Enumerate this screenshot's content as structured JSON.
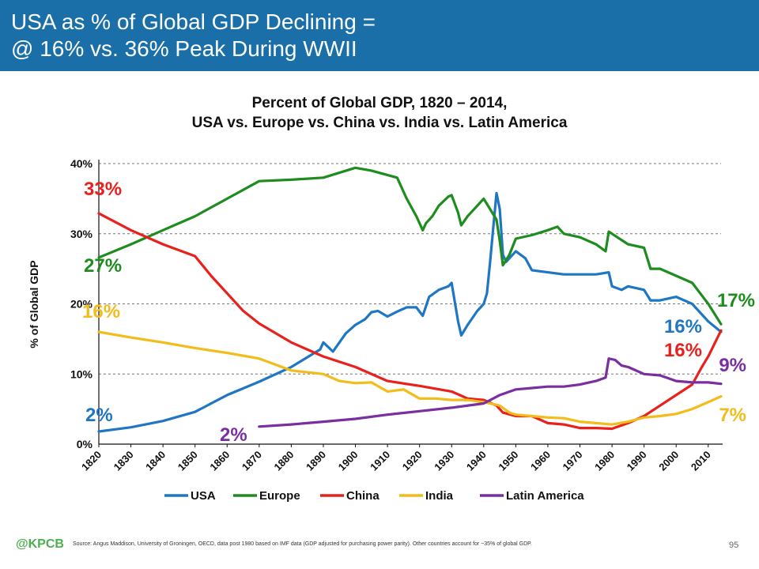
{
  "header": {
    "title_line1": "USA as % of Global GDP Declining =",
    "title_line2": "@ 16% vs. 36% Peak During WWII",
    "background_color": "#1a6fa8"
  },
  "chart_data": {
    "type": "line",
    "title_line1": "Percent of Global GDP, 1820 – 2014,",
    "title_line2": "USA vs. Europe vs. China vs. India vs. Latin America",
    "ylabel": "% of Global GDP",
    "xlabel": "",
    "xlim": [
      1820,
      2014
    ],
    "ylim": [
      0,
      40
    ],
    "y_ticks": [
      "0%",
      "10%",
      "20%",
      "30%",
      "40%"
    ],
    "x_ticks": [
      "1820",
      "1830",
      "1840",
      "1850",
      "1860",
      "1870",
      "1880",
      "1890",
      "1900",
      "1910",
      "1920",
      "1930",
      "1940",
      "1950",
      "1960",
      "1970",
      "1980",
      "1990",
      "2000",
      "2010"
    ],
    "grid": "horizontal dashed",
    "legend": "bottom",
    "series": [
      {
        "name": "USA",
        "color": "#1f77c4",
        "points": [
          [
            1820,
            1.8
          ],
          [
            1830,
            2.4
          ],
          [
            1840,
            3.3
          ],
          [
            1850,
            4.6
          ],
          [
            1860,
            7.0
          ],
          [
            1870,
            8.9
          ],
          [
            1880,
            11.0
          ],
          [
            1889,
            13.5
          ],
          [
            1890,
            14.5
          ],
          [
            1893,
            13.2
          ],
          [
            1897,
            15.8
          ],
          [
            1900,
            17.0
          ],
          [
            1903,
            17.8
          ],
          [
            1905,
            18.8
          ],
          [
            1907,
            19.0
          ],
          [
            1910,
            18.2
          ],
          [
            1913,
            18.9
          ],
          [
            1916,
            19.5
          ],
          [
            1919,
            19.5
          ],
          [
            1921,
            18.3
          ],
          [
            1923,
            21.0
          ],
          [
            1926,
            22.0
          ],
          [
            1929,
            22.5
          ],
          [
            1930,
            23.0
          ],
          [
            1932,
            17.5
          ],
          [
            1933,
            15.5
          ],
          [
            1935,
            17.0
          ],
          [
            1938,
            19.0
          ],
          [
            1940,
            20.0
          ],
          [
            1941,
            21.5
          ],
          [
            1942,
            26.0
          ],
          [
            1943,
            31.0
          ],
          [
            1944,
            35.8
          ],
          [
            1945,
            33.5
          ],
          [
            1946,
            27.0
          ],
          [
            1947,
            26.0
          ],
          [
            1950,
            27.5
          ],
          [
            1953,
            26.5
          ],
          [
            1955,
            24.8
          ],
          [
            1960,
            24.5
          ],
          [
            1965,
            24.2
          ],
          [
            1970,
            24.2
          ],
          [
            1975,
            24.2
          ],
          [
            1979,
            24.5
          ],
          [
            1980,
            22.5
          ],
          [
            1983,
            22.0
          ],
          [
            1985,
            22.5
          ],
          [
            1990,
            22.0
          ],
          [
            1992,
            20.5
          ],
          [
            1995,
            20.5
          ],
          [
            2000,
            21.0
          ],
          [
            2005,
            20.0
          ],
          [
            2010,
            17.5
          ],
          [
            2014,
            16.0
          ]
        ],
        "start_label": "2%",
        "end_label": "16%"
      },
      {
        "name": "Europe",
        "color": "#1e8c1e",
        "points": [
          [
            1820,
            26.6
          ],
          [
            1830,
            28.5
          ],
          [
            1840,
            30.5
          ],
          [
            1850,
            32.5
          ],
          [
            1860,
            35.0
          ],
          [
            1870,
            37.5
          ],
          [
            1880,
            37.7
          ],
          [
            1890,
            38.0
          ],
          [
            1900,
            39.4
          ],
          [
            1905,
            39.0
          ],
          [
            1913,
            38.0
          ],
          [
            1916,
            35.0
          ],
          [
            1919,
            32.5
          ],
          [
            1921,
            30.5
          ],
          [
            1922,
            31.5
          ],
          [
            1924,
            32.5
          ],
          [
            1926,
            34.0
          ],
          [
            1929,
            35.3
          ],
          [
            1930,
            35.5
          ],
          [
            1932,
            33.0
          ],
          [
            1933,
            31.2
          ],
          [
            1935,
            32.5
          ],
          [
            1938,
            34.0
          ],
          [
            1940,
            35.0
          ],
          [
            1942,
            33.5
          ],
          [
            1944,
            32.0
          ],
          [
            1945,
            29.0
          ],
          [
            1946,
            25.5
          ],
          [
            1948,
            27.0
          ],
          [
            1950,
            29.3
          ],
          [
            1955,
            29.8
          ],
          [
            1960,
            30.5
          ],
          [
            1963,
            31.0
          ],
          [
            1965,
            30.0
          ],
          [
            1970,
            29.5
          ],
          [
            1975,
            28.5
          ],
          [
            1978,
            27.5
          ],
          [
            1979,
            30.3
          ],
          [
            1980,
            30.0
          ],
          [
            1985,
            28.5
          ],
          [
            1990,
            28.0
          ],
          [
            1992,
            25.0
          ],
          [
            1995,
            25.0
          ],
          [
            2000,
            24.0
          ],
          [
            2005,
            23.0
          ],
          [
            2010,
            20.0
          ],
          [
            2014,
            17.1
          ]
        ],
        "start_label": "27%",
        "end_label": "17%"
      },
      {
        "name": "China",
        "color": "#e8211c",
        "points": [
          [
            1820,
            32.9
          ],
          [
            1830,
            30.5
          ],
          [
            1840,
            28.5
          ],
          [
            1850,
            26.8
          ],
          [
            1855,
            24.0
          ],
          [
            1860,
            21.5
          ],
          [
            1865,
            19.0
          ],
          [
            1870,
            17.2
          ],
          [
            1880,
            14.5
          ],
          [
            1890,
            12.5
          ],
          [
            1900,
            11.0
          ],
          [
            1910,
            9.0
          ],
          [
            1920,
            8.3
          ],
          [
            1930,
            7.5
          ],
          [
            1935,
            6.5
          ],
          [
            1940,
            6.3
          ],
          [
            1944,
            5.5
          ],
          [
            1946,
            4.5
          ],
          [
            1950,
            4.0
          ],
          [
            1955,
            4.0
          ],
          [
            1960,
            3.0
          ],
          [
            1965,
            2.8
          ],
          [
            1968,
            2.5
          ],
          [
            1970,
            2.3
          ],
          [
            1975,
            2.3
          ],
          [
            1980,
            2.2
          ],
          [
            1985,
            3.0
          ],
          [
            1990,
            4.0
          ],
          [
            1995,
            5.5
          ],
          [
            2000,
            7.0
          ],
          [
            2005,
            8.5
          ],
          [
            2008,
            11.0
          ],
          [
            2010,
            12.5
          ],
          [
            2014,
            16.2
          ]
        ],
        "start_label": "33%",
        "end_label": "16%"
      },
      {
        "name": "India",
        "color": "#f2bc1a",
        "points": [
          [
            1820,
            16.0
          ],
          [
            1830,
            15.2
          ],
          [
            1840,
            14.5
          ],
          [
            1850,
            13.7
          ],
          [
            1860,
            13.0
          ],
          [
            1870,
            12.2
          ],
          [
            1880,
            10.5
          ],
          [
            1890,
            10.0
          ],
          [
            1895,
            9.0
          ],
          [
            1900,
            8.7
          ],
          [
            1905,
            8.8
          ],
          [
            1910,
            7.5
          ],
          [
            1915,
            7.8
          ],
          [
            1920,
            6.5
          ],
          [
            1925,
            6.5
          ],
          [
            1930,
            6.3
          ],
          [
            1935,
            6.3
          ],
          [
            1940,
            6.0
          ],
          [
            1945,
            5.5
          ],
          [
            1948,
            4.5
          ],
          [
            1950,
            4.2
          ],
          [
            1955,
            4.0
          ],
          [
            1960,
            3.8
          ],
          [
            1965,
            3.7
          ],
          [
            1970,
            3.2
          ],
          [
            1975,
            3.0
          ],
          [
            1980,
            2.8
          ],
          [
            1985,
            3.2
          ],
          [
            1990,
            3.8
          ],
          [
            1995,
            4.0
          ],
          [
            2000,
            4.3
          ],
          [
            2005,
            5.0
          ],
          [
            2010,
            6.0
          ],
          [
            2014,
            6.8
          ]
        ],
        "start_label": "16%",
        "end_label": "7%"
      },
      {
        "name": "Latin America",
        "color": "#7a2fa0",
        "points": [
          [
            1870,
            2.5
          ],
          [
            1880,
            2.8
          ],
          [
            1890,
            3.2
          ],
          [
            1900,
            3.6
          ],
          [
            1910,
            4.2
          ],
          [
            1920,
            4.7
          ],
          [
            1930,
            5.2
          ],
          [
            1940,
            5.8
          ],
          [
            1945,
            7.0
          ],
          [
            1950,
            7.8
          ],
          [
            1955,
            8.0
          ],
          [
            1960,
            8.2
          ],
          [
            1965,
            8.2
          ],
          [
            1970,
            8.5
          ],
          [
            1975,
            9.0
          ],
          [
            1978,
            9.5
          ],
          [
            1979,
            12.2
          ],
          [
            1981,
            12.0
          ],
          [
            1983,
            11.2
          ],
          [
            1985,
            11.0
          ],
          [
            1990,
            10.0
          ],
          [
            1995,
            9.8
          ],
          [
            2000,
            9.0
          ],
          [
            2005,
            8.8
          ],
          [
            2010,
            8.8
          ],
          [
            2014,
            8.6
          ]
        ],
        "start_label": "2%",
        "end_label": "9%"
      }
    ]
  },
  "footer": {
    "logo": "@KPCB",
    "source": "Source: Angus Maddison, University of Groningen, OECD, data post 1980 based on IMF data (GDP adjusted for purchasing power parity). Other countries account for ~35% of global GDP.",
    "page_number": "95"
  }
}
